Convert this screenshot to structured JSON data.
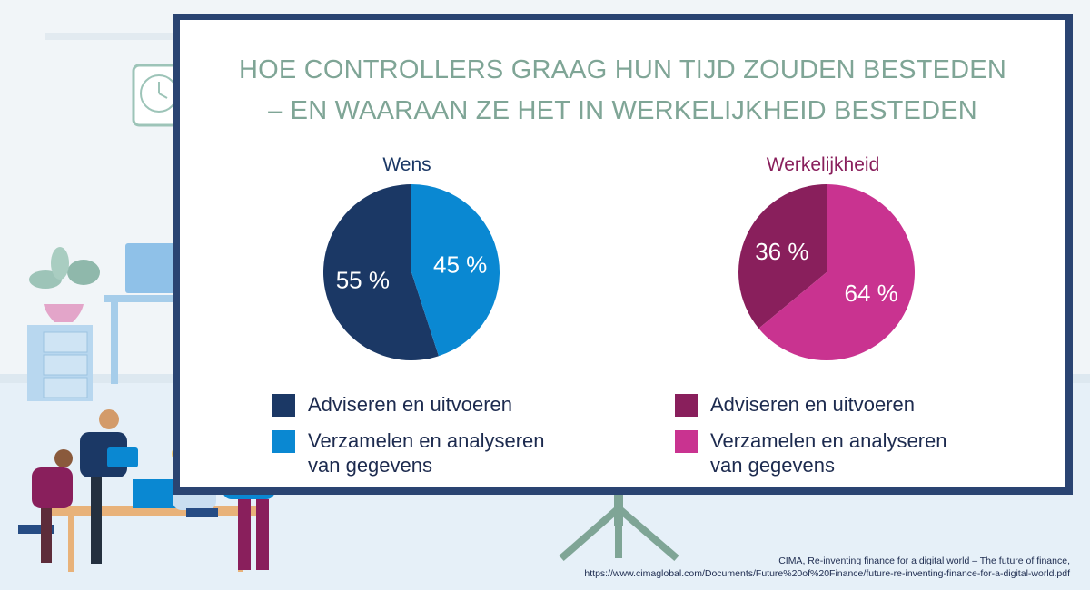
{
  "title": {
    "line1": "HOE CONTROLLERS GRAAG HUN TIJD ZOUDEN BESTEDEN",
    "line2": "– EN WAARAAN ZE HET IN WERKELIJKHEID BESTEDEN"
  },
  "colors": {
    "wens_advise": "#1b3865",
    "wens_collect": "#0a88d2",
    "werk_advise": "#891f5c",
    "werk_collect": "#c93390",
    "title": "#7fa596",
    "board_frame": "#2a4472"
  },
  "chart_data": [
    {
      "type": "pie",
      "title": "Wens",
      "labels": [
        "Adviseren en uitvoeren",
        "Verzamelen en analyseren van gegevens"
      ],
      "values": [
        55,
        45
      ],
      "value_labels": [
        "55 %",
        "45 %"
      ]
    },
    {
      "type": "pie",
      "title": "Werkelijkheid",
      "labels": [
        "Adviseren en uitvoeren",
        "Verzamelen en analyseren van gegevens"
      ],
      "values": [
        36,
        64
      ],
      "value_labels": [
        "36 %",
        "64 %"
      ]
    }
  ],
  "source": {
    "line1": "CIMA, Re-inventing finance for a digital world – The future of finance,",
    "line2": "https://www.cimaglobal.com/Documents/Future%20of%20Finance/future-re-inventing-finance-for-a-digital-world.pdf"
  }
}
